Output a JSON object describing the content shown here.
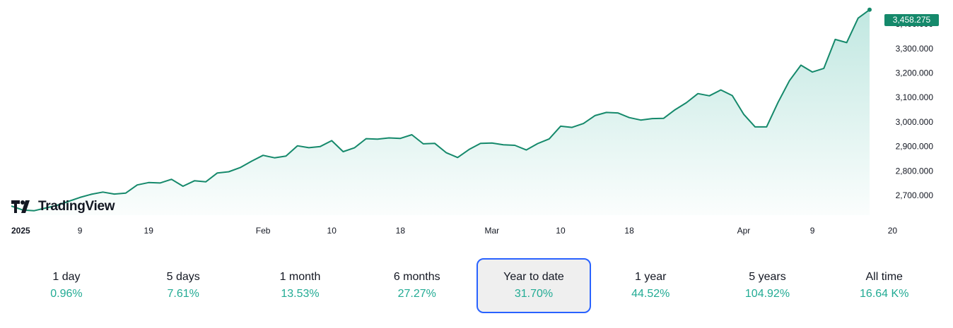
{
  "chart_data": {
    "type": "area",
    "title": "",
    "xlabel": "",
    "ylabel": "",
    "ylim": [
      2640000,
      3475000
    ],
    "y_ticks": [
      "2,700.000",
      "2,800.000",
      "2,900.000",
      "3,000.000",
      "3,100.000",
      "3,200.000",
      "3,300.000",
      "3,400.000"
    ],
    "y_tick_values": [
      2700000,
      2800000,
      2900000,
      3000000,
      3100000,
      3200000,
      3300000,
      3400000
    ],
    "x_tick_labels": [
      "2025",
      "9",
      "19",
      "Feb",
      "10",
      "18",
      "Mar",
      "10",
      "18",
      "Apr",
      "9",
      "20"
    ],
    "x_tick_index": [
      0,
      6,
      12,
      22,
      28,
      34,
      42,
      48,
      54,
      64,
      70,
      77
    ],
    "values": [
      2657000,
      2641000,
      2638000,
      2649000,
      2660000,
      2676000,
      2692000,
      2705000,
      2714000,
      2706000,
      2710000,
      2743000,
      2753000,
      2751000,
      2766000,
      2738000,
      2760000,
      2756000,
      2792000,
      2797000,
      2814000,
      2840000,
      2864000,
      2854000,
      2861000,
      2903000,
      2895000,
      2900000,
      2924000,
      2879000,
      2895000,
      2932000,
      2930000,
      2935000,
      2933000,
      2948000,
      2911000,
      2913000,
      2875000,
      2855000,
      2888000,
      2913000,
      2914000,
      2907000,
      2905000,
      2886000,
      2912000,
      2931000,
      2983000,
      2978000,
      2994000,
      3026000,
      3039000,
      3037000,
      3018000,
      3008000,
      3014000,
      3015000,
      3050000,
      3079000,
      3116000,
      3107000,
      3131000,
      3108000,
      3032000,
      2980000,
      2980000,
      3080000,
      3169000,
      3232000,
      3204000,
      3219000,
      3337000,
      3324000,
      3424000,
      3458275
    ],
    "last_value_label": "3,458.275",
    "colors": {
      "line": "#15896b",
      "fill": "#22ab94",
      "badge": "#15896b"
    }
  },
  "logo": {
    "text": "TradingView"
  },
  "ranges": [
    {
      "label": "1 day",
      "change": "0.96%",
      "active": false
    },
    {
      "label": "5 days",
      "change": "7.61%",
      "active": false
    },
    {
      "label": "1 month",
      "change": "13.53%",
      "active": false
    },
    {
      "label": "6 months",
      "change": "27.27%",
      "active": false
    },
    {
      "label": "Year to date",
      "change": "31.70%",
      "active": true
    },
    {
      "label": "1 year",
      "change": "44.52%",
      "active": false
    },
    {
      "label": "5 years",
      "change": "104.92%",
      "active": false
    },
    {
      "label": "All time",
      "change": "16.64 K%",
      "active": false
    }
  ]
}
